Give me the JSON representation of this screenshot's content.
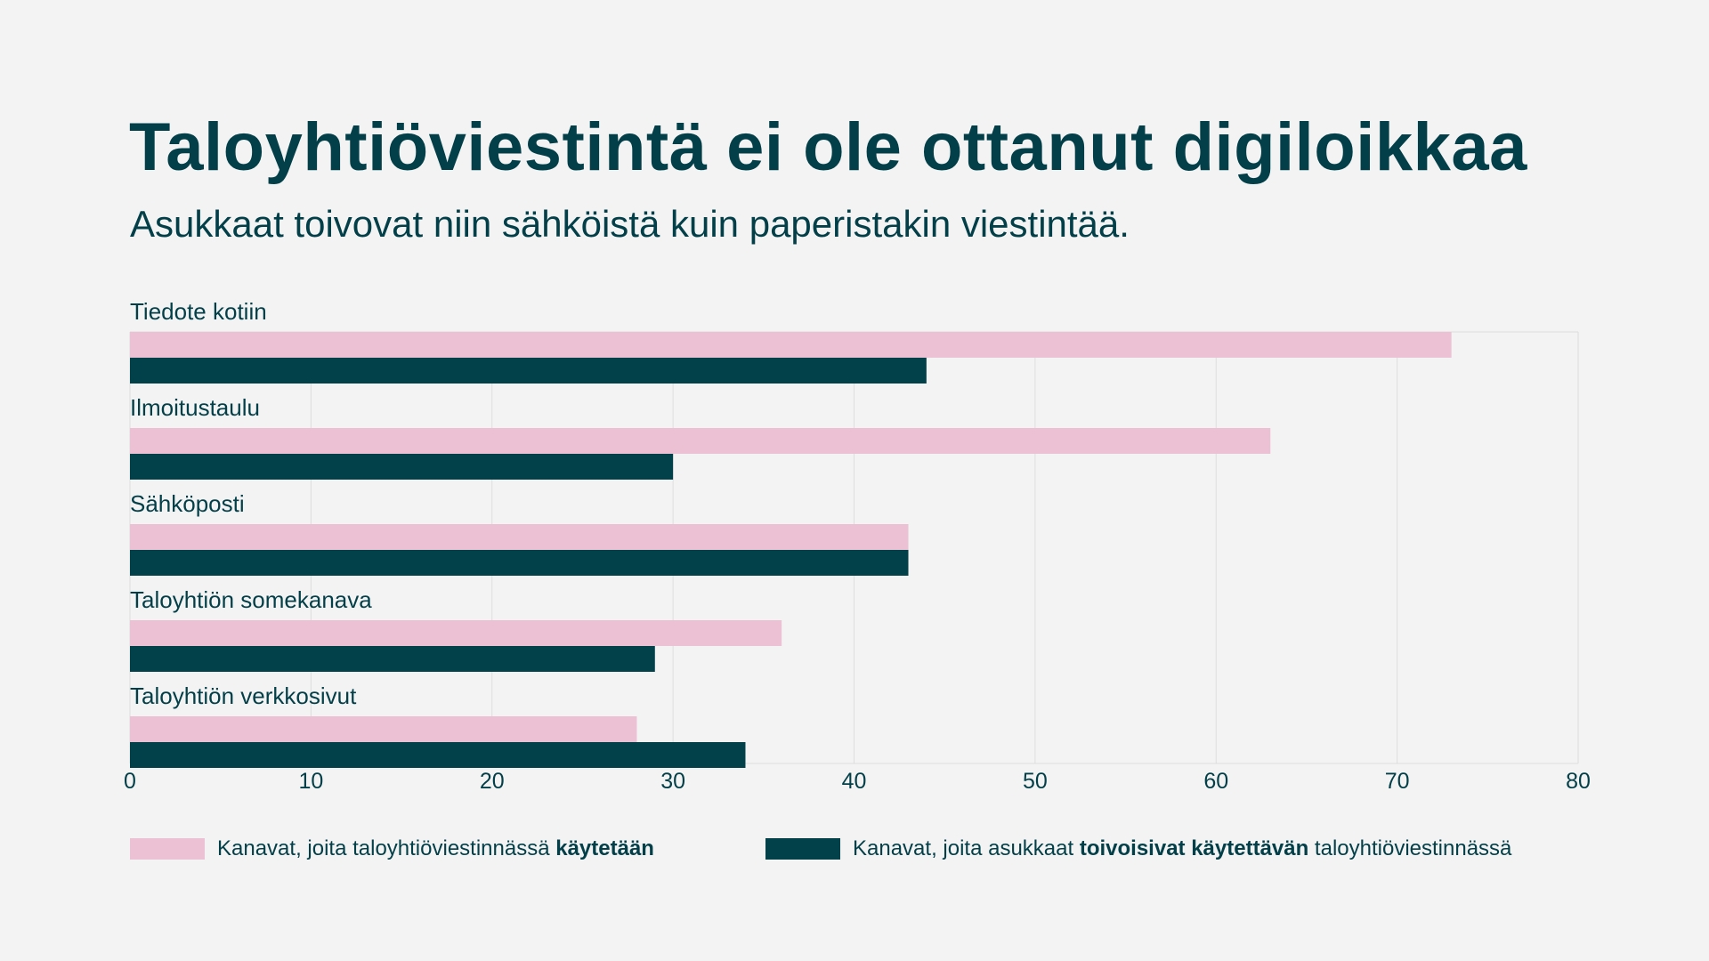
{
  "title": "Taloyhtiöviestintä ei ole ottanut digiloikkaa",
  "subtitle": "Asukkaat toivovat niin sähköistä kuin paperistakin viestintää.",
  "colors": {
    "background": "#f3f3f3",
    "text": "#033f48",
    "pink": "#ecc1d3",
    "dark": "#02414a",
    "grid": "#dedede"
  },
  "legend": [
    {
      "pre": "Kanavat, joita taloyhtiöviestinnässä ",
      "bold": "käytetään",
      "post": ""
    },
    {
      "pre": "Kanavat, joita asukkaat ",
      "bold": "toivoisivat käytettävän",
      "post": " taloyhtiöviestinnässä"
    }
  ],
  "chart_data": {
    "type": "bar",
    "orientation": "horizontal",
    "categories": [
      "Tiedote kotiin",
      "Ilmoitustaulu",
      "Sähköposti",
      "Taloyhtiön somekanava",
      "Taloyhtiön verkkosivut"
    ],
    "series": [
      {
        "name": "Kanavat, joita taloyhtiöviestinnässä käytetään",
        "color": "#ecc1d3",
        "values": [
          73,
          63,
          43,
          36,
          28
        ]
      },
      {
        "name": "Kanavat, joita asukkaat toivoisivat käytettävän taloyhtiöviestinnässä",
        "color": "#02414a",
        "values": [
          44,
          30,
          43,
          29,
          34
        ]
      }
    ],
    "xlim": [
      0,
      80
    ],
    "xticks": [
      "0",
      "10",
      "20",
      "30",
      "40",
      "50",
      "60",
      "70",
      "80"
    ],
    "grid": true,
    "legend_position": "bottom"
  }
}
